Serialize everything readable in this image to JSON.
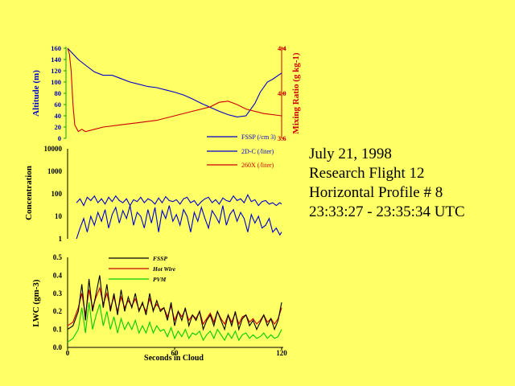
{
  "title_lines": [
    "July 21, 1998",
    "Research Flight 12",
    "Horizontal Profile # 8",
    "23:33:27 - 23:35:34 UTC"
  ],
  "colors": {
    "background": "#ffff66",
    "blue": "#0000cc",
    "red": "#cc0000",
    "green": "#00cc00",
    "black": "#000000"
  },
  "chart_data": [
    {
      "type": "line",
      "panel": "top",
      "ylabel": "Altitude (m)",
      "y2label": "Mixing Ratio (g kg-1)",
      "ylim": [
        0,
        160
      ],
      "yticks": [
        0,
        20,
        40,
        60,
        80,
        100,
        120,
        140,
        160
      ],
      "y2lim": [
        3.6,
        4.4
      ],
      "y2ticks": [
        3.6,
        4.0,
        4.4
      ],
      "series": [
        {
          "axis": "left",
          "color": "#0000cc",
          "x": [
            0,
            3,
            6,
            10,
            15,
            20,
            25,
            30,
            35,
            40,
            45,
            50,
            55,
            60,
            65,
            70,
            75,
            80,
            85,
            90,
            95,
            100,
            105,
            108,
            112,
            115,
            120
          ],
          "y": [
            160,
            150,
            140,
            130,
            118,
            112,
            112,
            106,
            100,
            96,
            92,
            90,
            86,
            82,
            77,
            70,
            62,
            55,
            48,
            42,
            38,
            40,
            62,
            82,
            100,
            105,
            116
          ]
        },
        {
          "axis": "right",
          "color": "#cc0000",
          "x": [
            0,
            1,
            2,
            3,
            4,
            5,
            6,
            8,
            10,
            15,
            20,
            30,
            40,
            50,
            60,
            70,
            80,
            85,
            90,
            95,
            100,
            110,
            120
          ],
          "y": [
            4.4,
            4.35,
            4.2,
            3.9,
            3.72,
            3.69,
            3.66,
            3.68,
            3.66,
            3.68,
            3.7,
            3.72,
            3.74,
            3.76,
            3.8,
            3.84,
            3.88,
            3.92,
            3.93,
            3.9,
            3.86,
            3.82,
            3.8
          ]
        }
      ],
      "legend": [
        {
          "label": "FSSP (/cm 3)",
          "color": "#0000cc"
        },
        {
          "label": "2D-C (/liter)",
          "color": "#0000cc"
        },
        {
          "label": "260X (/liter)",
          "color": "#cc0000"
        }
      ]
    },
    {
      "type": "line",
      "panel": "middle",
      "ylabel": "Concentration",
      "yscale": "log",
      "ylim": [
        1,
        10000
      ],
      "yticks": [
        1,
        10,
        100,
        1000,
        10000
      ],
      "series": [
        {
          "color": "#0000cc",
          "x": [
            5,
            7,
            9,
            11,
            13,
            15,
            17,
            19,
            21,
            23,
            25,
            27,
            29,
            31,
            33,
            35,
            37,
            39,
            41,
            43,
            45,
            47,
            49,
            51,
            53,
            55,
            57,
            59,
            61,
            63,
            65,
            67,
            69,
            71,
            73,
            75,
            77,
            79,
            81,
            83,
            85,
            87,
            89,
            91,
            93,
            95,
            97,
            99,
            101,
            103,
            105,
            107,
            109,
            111,
            113,
            115,
            117,
            119,
            120
          ],
          "y": [
            40,
            60,
            30,
            70,
            50,
            80,
            40,
            60,
            35,
            70,
            45,
            80,
            50,
            40,
            60,
            30,
            55,
            45,
            70,
            40,
            60,
            50,
            35,
            65,
            40,
            75,
            50,
            45,
            55,
            35,
            60,
            70,
            40,
            50,
            30,
            45,
            60,
            70,
            40,
            55,
            35,
            65,
            50,
            45,
            80,
            50,
            60,
            40,
            90,
            45,
            55,
            30,
            45,
            50,
            35,
            40,
            30,
            40,
            35
          ]
        },
        {
          "color": "#0000cc",
          "x": [
            5,
            7,
            9,
            11,
            13,
            15,
            17,
            19,
            21,
            23,
            25,
            27,
            29,
            31,
            33,
            35,
            37,
            39,
            41,
            43,
            45,
            47,
            49,
            51,
            53,
            55,
            57,
            59,
            61,
            63,
            65,
            67,
            69,
            71,
            73,
            75,
            77,
            79,
            81,
            83,
            85,
            87,
            89,
            91,
            93,
            95,
            97,
            99,
            101,
            103,
            105,
            107,
            109,
            111,
            113,
            115,
            117,
            119,
            120
          ],
          "y": [
            1,
            3,
            8,
            2,
            10,
            4,
            15,
            6,
            20,
            3,
            12,
            25,
            5,
            18,
            8,
            30,
            4,
            15,
            10,
            3,
            20,
            5,
            25,
            2,
            18,
            8,
            30,
            6,
            12,
            4,
            20,
            10,
            2,
            15,
            6,
            25,
            8,
            3,
            18,
            10,
            5,
            30,
            4,
            12,
            20,
            6,
            15,
            8,
            2,
            12,
            5,
            10,
            3,
            4,
            8,
            2,
            3,
            1.5,
            2
          ]
        }
      ]
    },
    {
      "type": "line",
      "panel": "bottom",
      "ylabel": "LWC (gm-3)",
      "xlabel": "Seconds in Cloud",
      "ylim": [
        0,
        0.5
      ],
      "yticks": [
        0.0,
        0.1,
        0.2,
        0.3,
        0.4,
        0.5
      ],
      "xlim": [
        0,
        120
      ],
      "xticks": [
        0,
        60,
        120
      ],
      "series": [
        {
          "name": "FSSP",
          "color": "#000000",
          "x": [
            0,
            3,
            6,
            8,
            10,
            12,
            14,
            16,
            18,
            20,
            22,
            24,
            26,
            28,
            30,
            32,
            34,
            36,
            38,
            40,
            42,
            44,
            46,
            48,
            50,
            52,
            54,
            56,
            58,
            60,
            62,
            64,
            66,
            68,
            70,
            72,
            74,
            76,
            78,
            80,
            82,
            84,
            86,
            88,
            90,
            92,
            94,
            96,
            98,
            100,
            102,
            104,
            106,
            108,
            110,
            112,
            114,
            116,
            118,
            120
          ],
          "y": [
            0.1,
            0.12,
            0.2,
            0.35,
            0.15,
            0.38,
            0.2,
            0.3,
            0.4,
            0.22,
            0.35,
            0.2,
            0.3,
            0.18,
            0.32,
            0.2,
            0.28,
            0.22,
            0.3,
            0.2,
            0.25,
            0.18,
            0.3,
            0.2,
            0.26,
            0.2,
            0.22,
            0.15,
            0.25,
            0.12,
            0.2,
            0.15,
            0.22,
            0.12,
            0.18,
            0.15,
            0.2,
            0.1,
            0.15,
            0.18,
            0.12,
            0.2,
            0.15,
            0.1,
            0.18,
            0.12,
            0.2,
            0.1,
            0.16,
            0.18,
            0.12,
            0.15,
            0.1,
            0.14,
            0.18,
            0.12,
            0.16,
            0.1,
            0.15,
            0.25
          ]
        },
        {
          "name": "Hot Wire",
          "color": "#cc0000",
          "x": [
            0,
            3,
            6,
            8,
            10,
            12,
            14,
            16,
            18,
            20,
            22,
            24,
            26,
            28,
            30,
            32,
            34,
            36,
            38,
            40,
            42,
            44,
            46,
            48,
            50,
            52,
            54,
            56,
            58,
            60,
            62,
            64,
            66,
            68,
            70,
            72,
            74,
            76,
            78,
            80,
            82,
            84,
            86,
            88,
            90,
            92,
            94,
            96,
            98,
            100,
            102,
            104,
            106,
            108,
            110,
            112,
            114,
            116,
            118,
            120
          ],
          "y": [
            0.12,
            0.14,
            0.22,
            0.3,
            0.18,
            0.32,
            0.22,
            0.28,
            0.33,
            0.24,
            0.3,
            0.22,
            0.28,
            0.2,
            0.28,
            0.22,
            0.26,
            0.23,
            0.27,
            0.21,
            0.24,
            0.2,
            0.27,
            0.21,
            0.24,
            0.21,
            0.22,
            0.17,
            0.23,
            0.15,
            0.2,
            0.17,
            0.21,
            0.15,
            0.18,
            0.16,
            0.2,
            0.13,
            0.16,
            0.19,
            0.14,
            0.2,
            0.16,
            0.13,
            0.18,
            0.14,
            0.19,
            0.13,
            0.17,
            0.18,
            0.14,
            0.16,
            0.13,
            0.15,
            0.18,
            0.14,
            0.16,
            0.13,
            0.16,
            0.22
          ]
        },
        {
          "name": "PVM",
          "color": "#00cc00",
          "x": [
            0,
            3,
            6,
            8,
            10,
            12,
            14,
            16,
            18,
            20,
            22,
            24,
            26,
            28,
            30,
            32,
            34,
            36,
            38,
            40,
            42,
            44,
            46,
            48,
            50,
            52,
            54,
            56,
            58,
            60,
            62,
            64,
            66,
            68,
            70,
            72,
            74,
            76,
            78,
            80,
            82,
            84,
            86,
            88,
            90,
            92,
            94,
            96,
            98,
            100,
            102,
            104,
            106,
            108,
            110,
            112,
            114,
            116,
            118,
            120
          ],
          "y": [
            0.03,
            0.05,
            0.1,
            0.22,
            0.08,
            0.25,
            0.1,
            0.18,
            0.24,
            0.12,
            0.2,
            0.1,
            0.17,
            0.08,
            0.16,
            0.1,
            0.14,
            0.1,
            0.15,
            0.08,
            0.12,
            0.08,
            0.14,
            0.08,
            0.12,
            0.09,
            0.1,
            0.06,
            0.11,
            0.05,
            0.09,
            0.06,
            0.1,
            0.05,
            0.08,
            0.07,
            0.09,
            0.04,
            0.07,
            0.09,
            0.05,
            0.1,
            0.07,
            0.04,
            0.08,
            0.05,
            0.09,
            0.04,
            0.07,
            0.08,
            0.05,
            0.07,
            0.05,
            0.06,
            0.08,
            0.05,
            0.07,
            0.05,
            0.06,
            0.1
          ]
        }
      ]
    }
  ]
}
